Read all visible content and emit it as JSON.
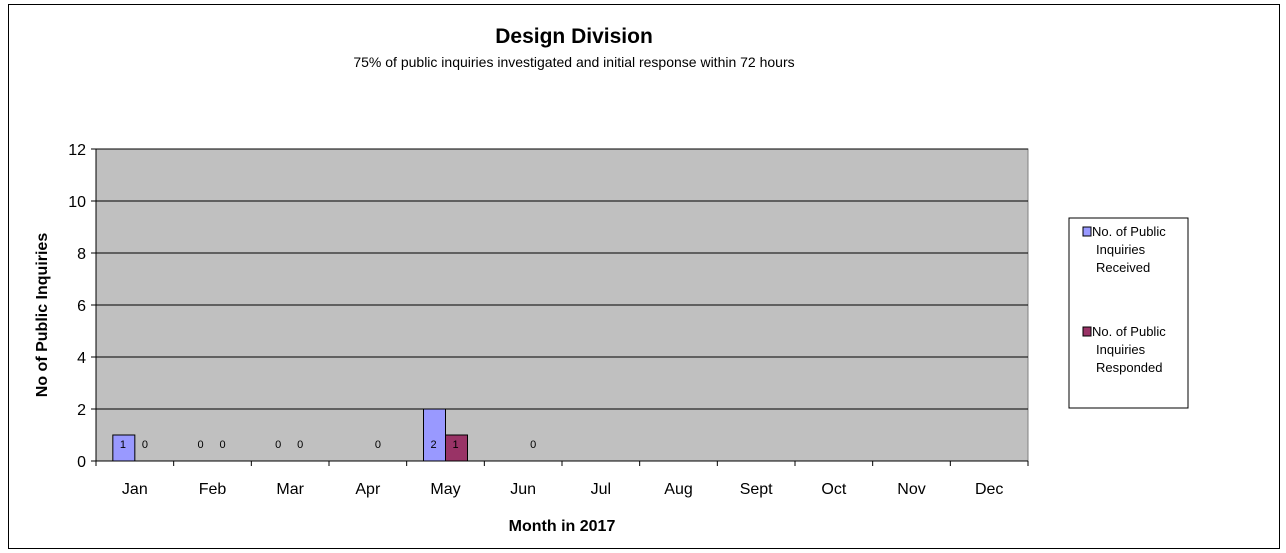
{
  "chart_data": {
    "type": "bar",
    "title": "Design Division",
    "subtitle": "75% of public inquiries investigated and initial response within 72 hours",
    "xlabel": "Month in 2017",
    "ylabel": "No of Public Inquiries",
    "ylim": [
      0,
      12
    ],
    "yticks": [
      0,
      2,
      4,
      6,
      8,
      10,
      12
    ],
    "grid": true,
    "legend_position": "right",
    "categories": [
      "Jan",
      "Feb",
      "Mar",
      "Apr",
      "May",
      "Jun",
      "Jul",
      "Aug",
      "Sept",
      "Oct",
      "Nov",
      "Dec"
    ],
    "series": [
      {
        "name": "No. of Public Inquiries Received",
        "legend_lines": [
          "No. of Public",
          "Inquiries",
          "Received"
        ],
        "color": "#9999ff",
        "values": [
          1,
          0,
          0,
          null,
          2,
          null,
          null,
          null,
          null,
          null,
          null,
          null
        ],
        "labels": [
          "1",
          "0",
          "0",
          "",
          "2",
          "",
          "",
          "",
          "",
          "",
          "",
          ""
        ]
      },
      {
        "name": "No. of Public Inquiries Responded",
        "legend_lines": [
          "No. of Public",
          "Inquiries",
          "Responded"
        ],
        "color": "#993366",
        "values": [
          0,
          0,
          0,
          0,
          1,
          0,
          null,
          null,
          null,
          null,
          null,
          null
        ],
        "labels": [
          "0",
          "0",
          "0",
          "0",
          "1",
          "0",
          "",
          "",
          "",
          "",
          "",
          ""
        ]
      }
    ],
    "plot_background": "#c0c0c0"
  }
}
